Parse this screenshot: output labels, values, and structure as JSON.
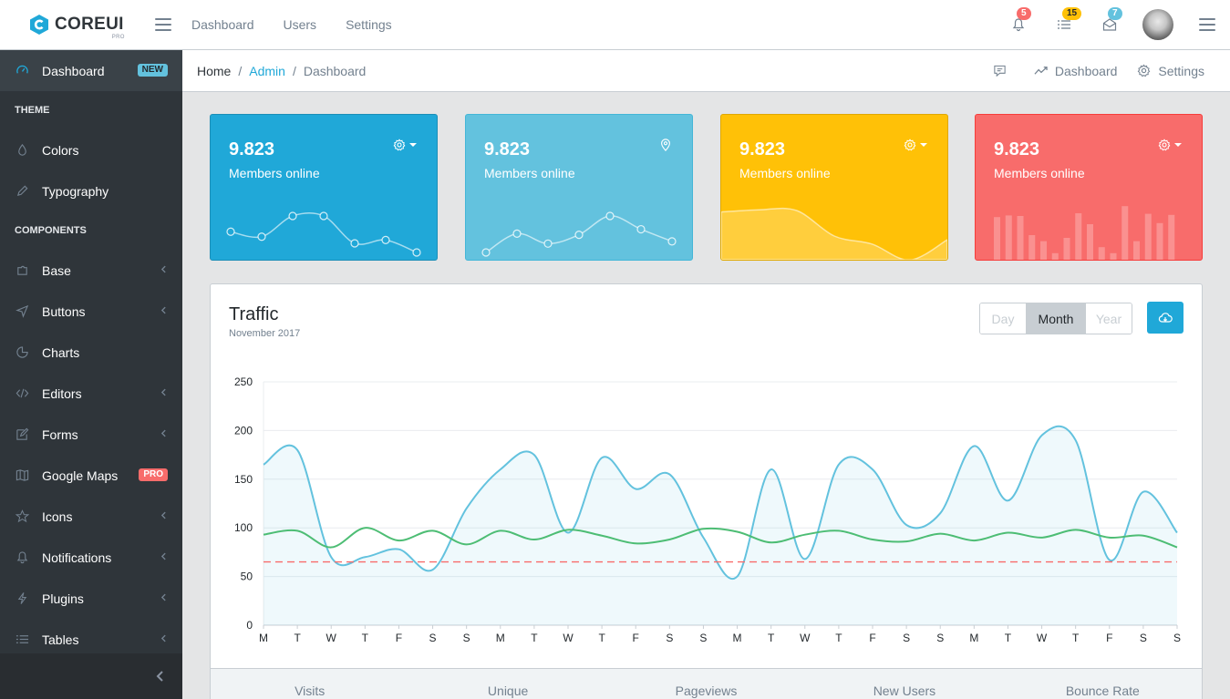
{
  "header": {
    "brand": "COREUI",
    "brand_sub": "PRO",
    "nav": [
      "Dashboard",
      "Users",
      "Settings"
    ],
    "notifications_count": "5",
    "tasks_count": "15",
    "messages_count": "7"
  },
  "sidebar": {
    "dashboard": {
      "label": "Dashboard",
      "badge": "NEW"
    },
    "theme_title": "THEME",
    "colors": "Colors",
    "typography": "Typography",
    "components_title": "COMPONENTS",
    "base": "Base",
    "buttons": "Buttons",
    "charts": "Charts",
    "editors": "Editors",
    "forms": "Forms",
    "google_maps": {
      "label": "Google Maps",
      "badge": "PRO"
    },
    "icons": "Icons",
    "notifications": "Notifications",
    "plugins": "Plugins",
    "tables": "Tables"
  },
  "breadcrumb": {
    "home": "Home",
    "admin": "Admin",
    "current": "Dashboard",
    "menu_dashboard": "Dashboard",
    "menu_settings": "Settings"
  },
  "cards": [
    {
      "value": "9.823",
      "label": "Members online",
      "color": "#20a8d8",
      "chart": "line",
      "data": [
        65,
        59,
        84,
        84,
        51,
        55,
        40
      ]
    },
    {
      "value": "9.823",
      "label": "Members online",
      "color": "#63c2de",
      "chart": "line",
      "data": [
        1,
        18,
        9,
        17,
        34,
        22,
        11
      ]
    },
    {
      "value": "9.823",
      "label": "Members online",
      "color": "#ffc107",
      "chart": "area",
      "data": [
        78,
        81,
        80,
        45,
        34,
        12,
        40
      ]
    },
    {
      "value": "9.823",
      "label": "Members online",
      "color": "#f86c6b",
      "chart": "bar",
      "data": [
        78,
        81,
        80,
        45,
        34,
        12,
        40,
        85,
        65,
        23,
        12,
        98,
        34,
        84,
        67,
        82
      ]
    }
  ],
  "traffic": {
    "title": "Traffic",
    "subtitle": "November 2017",
    "buttons": [
      "Day",
      "Month",
      "Year"
    ],
    "selected": "Month",
    "footer": [
      "Visits",
      "Unique",
      "Pageviews",
      "New Users",
      "Bounce Rate"
    ]
  },
  "chart_data": {
    "type": "line",
    "categories": [
      "M",
      "T",
      "W",
      "T",
      "F",
      "S",
      "S",
      "M",
      "T",
      "W",
      "T",
      "F",
      "S",
      "S",
      "M",
      "T",
      "W",
      "T",
      "F",
      "S",
      "S",
      "M",
      "T",
      "W",
      "T",
      "F",
      "S",
      "S"
    ],
    "yticks": [
      "0",
      "50",
      "100",
      "150",
      "200",
      "250"
    ],
    "ylim": [
      0,
      250
    ],
    "grid": true,
    "series": [
      {
        "color": "#63c2de",
        "fill": true,
        "values": [
          165,
          180,
          70,
          70,
          78,
          57,
          120,
          160,
          175,
          95,
          172,
          140,
          155,
          90,
          50,
          160,
          68,
          165,
          160,
          103,
          115,
          184,
          128,
          195,
          190,
          67,
          137,
          95
        ]
      },
      {
        "color": "#4dbd74",
        "fill": false,
        "values": [
          93,
          97,
          80,
          100,
          87,
          97,
          83,
          97,
          88,
          98,
          92,
          84,
          88,
          99,
          96,
          85,
          93,
          97,
          88,
          86,
          94,
          87,
          95,
          90,
          98,
          90,
          92,
          80
        ]
      },
      {
        "color": "#f86c6b",
        "fill": false,
        "dashed": true,
        "values": [
          65,
          65,
          65,
          65,
          65,
          65,
          65,
          65,
          65,
          65,
          65,
          65,
          65,
          65,
          65,
          65,
          65,
          65,
          65,
          65,
          65,
          65,
          65,
          65,
          65,
          65,
          65,
          65
        ]
      }
    ]
  }
}
